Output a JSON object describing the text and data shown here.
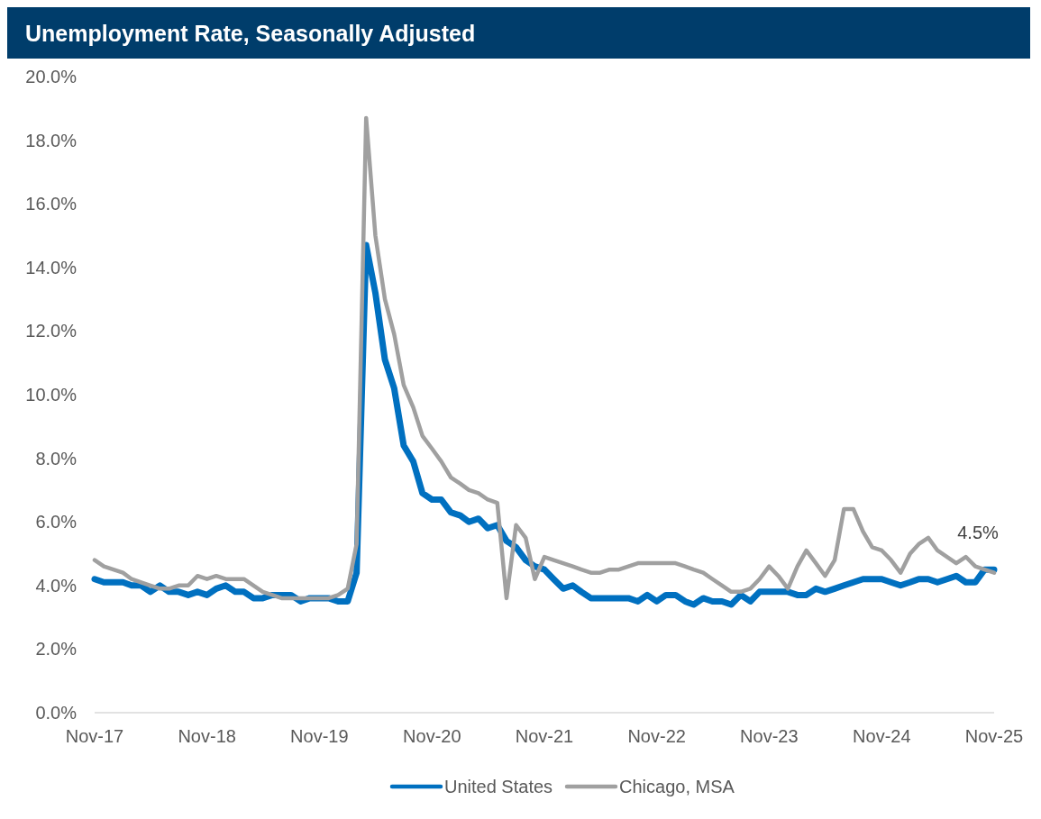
{
  "chart_data": {
    "type": "line",
    "title": "Unemployment Rate, Seasonally Adjusted",
    "x": [
      "2017-11",
      "2017-12",
      "2018-01",
      "2018-02",
      "2018-03",
      "2018-04",
      "2018-05",
      "2018-06",
      "2018-07",
      "2018-08",
      "2018-09",
      "2018-10",
      "2018-11",
      "2018-12",
      "2019-01",
      "2019-02",
      "2019-03",
      "2019-04",
      "2019-05",
      "2019-06",
      "2019-07",
      "2019-08",
      "2019-09",
      "2019-10",
      "2019-11",
      "2019-12",
      "2020-01",
      "2020-02",
      "2020-03",
      "2020-04",
      "2020-05",
      "2020-06",
      "2020-07",
      "2020-08",
      "2020-09",
      "2020-10",
      "2020-11",
      "2020-12",
      "2021-01",
      "2021-02",
      "2021-03",
      "2021-04",
      "2021-05",
      "2021-06",
      "2021-07",
      "2021-08",
      "2021-09",
      "2021-10",
      "2021-11",
      "2021-12",
      "2022-01",
      "2022-02",
      "2022-03",
      "2022-04",
      "2022-05",
      "2022-06",
      "2022-07",
      "2022-08",
      "2022-09",
      "2022-10",
      "2022-11",
      "2022-12",
      "2023-01",
      "2023-02",
      "2023-03",
      "2023-04",
      "2023-05",
      "2023-06",
      "2023-07",
      "2023-08",
      "2023-09",
      "2023-10",
      "2023-11",
      "2023-12",
      "2024-01",
      "2024-02",
      "2024-03",
      "2024-04",
      "2024-05",
      "2024-06",
      "2024-07",
      "2024-08",
      "2024-09",
      "2024-10",
      "2024-11",
      "2024-12",
      "2025-01",
      "2025-02",
      "2025-03",
      "2025-04",
      "2025-05",
      "2025-06",
      "2025-07",
      "2025-08",
      "2025-09",
      "2025-10",
      "2025-11"
    ],
    "series": [
      {
        "name": "United States",
        "color": "#0070c0",
        "values": [
          4.2,
          4.1,
          4.1,
          4.1,
          4.0,
          4.0,
          3.8,
          4.0,
          3.8,
          3.8,
          3.7,
          3.8,
          3.7,
          3.9,
          4.0,
          3.8,
          3.8,
          3.6,
          3.6,
          3.7,
          3.7,
          3.7,
          3.5,
          3.6,
          3.6,
          3.6,
          3.5,
          3.5,
          4.4,
          14.7,
          13.2,
          11.1,
          10.2,
          8.4,
          7.9,
          6.9,
          6.7,
          6.7,
          6.3,
          6.2,
          6.0,
          6.1,
          5.8,
          5.9,
          5.4,
          5.2,
          4.8,
          4.6,
          4.5,
          4.2,
          3.9,
          4.0,
          3.8,
          3.6,
          3.6,
          3.6,
          3.6,
          3.6,
          3.5,
          3.7,
          3.5,
          3.7,
          3.7,
          3.5,
          3.4,
          3.6,
          3.5,
          3.5,
          3.4,
          3.7,
          3.5,
          3.8,
          3.8,
          3.8,
          3.8,
          3.7,
          3.7,
          3.9,
          3.8,
          3.9,
          4.0,
          4.1,
          4.2,
          4.2,
          4.2,
          4.1,
          4.0,
          4.1,
          4.2,
          4.2,
          4.1,
          4.2,
          4.3,
          4.1,
          4.1,
          4.5,
          4.5
        ]
      },
      {
        "name": "Chicago, MSA",
        "color": "#a0a0a0",
        "values": [
          4.8,
          4.6,
          4.5,
          4.4,
          4.2,
          4.1,
          4.0,
          3.9,
          3.9,
          4.0,
          4.0,
          4.3,
          4.2,
          4.3,
          4.2,
          4.2,
          4.2,
          4.0,
          3.8,
          3.7,
          3.6,
          3.6,
          3.6,
          3.6,
          3.6,
          3.6,
          3.7,
          3.9,
          5.3,
          18.7,
          15.0,
          13.0,
          11.9,
          10.3,
          9.6,
          8.7,
          8.3,
          7.9,
          7.4,
          7.2,
          7.0,
          6.9,
          6.7,
          6.6,
          3.6,
          5.9,
          5.5,
          4.2,
          4.9,
          4.8,
          4.7,
          4.6,
          4.5,
          4.4,
          4.4,
          4.5,
          4.5,
          4.6,
          4.7,
          4.7,
          4.7,
          4.7,
          4.7,
          4.6,
          4.5,
          4.4,
          4.2,
          4.0,
          3.8,
          3.8,
          3.9,
          4.2,
          4.6,
          4.3,
          3.9,
          4.6,
          5.1,
          4.7,
          4.3,
          4.8,
          6.4,
          6.4,
          5.7,
          5.2,
          5.1,
          4.8,
          4.4,
          5.0,
          5.3,
          5.5,
          5.1,
          4.9,
          4.7,
          4.9,
          4.6,
          4.5,
          4.4
        ]
      }
    ],
    "xlim": [
      "2017-11",
      "2025-11"
    ],
    "xticks": [
      {
        "value": "2017-11",
        "label": "Nov-17"
      },
      {
        "value": "2018-11",
        "label": "Nov-18"
      },
      {
        "value": "2019-11",
        "label": "Nov-19"
      },
      {
        "value": "2020-11",
        "label": "Nov-20"
      },
      {
        "value": "2021-11",
        "label": "Nov-21"
      },
      {
        "value": "2022-11",
        "label": "Nov-22"
      },
      {
        "value": "2023-11",
        "label": "Nov-23"
      },
      {
        "value": "2024-11",
        "label": "Nov-24"
      },
      {
        "value": "2025-11",
        "label": "Nov-25"
      }
    ],
    "ylim": [
      0,
      20
    ],
    "yticks": [
      {
        "value": 0,
        "label": "0.0%"
      },
      {
        "value": 2,
        "label": "2.0%"
      },
      {
        "value": 4,
        "label": "4.0%"
      },
      {
        "value": 6,
        "label": "6.0%"
      },
      {
        "value": 8,
        "label": "8.0%"
      },
      {
        "value": 10,
        "label": "10.0%"
      },
      {
        "value": 12,
        "label": "12.0%"
      },
      {
        "value": 14,
        "label": "14.0%"
      },
      {
        "value": 16,
        "label": "16.0%"
      },
      {
        "value": 18,
        "label": "18.0%"
      },
      {
        "value": 20,
        "label": "20.0%"
      }
    ],
    "annotations": [
      {
        "text": "4.5%",
        "x": "2025-11",
        "y": 4.5
      }
    ],
    "grid": false,
    "legend": "bottom",
    "marker": "none",
    "line_style": "solid"
  }
}
